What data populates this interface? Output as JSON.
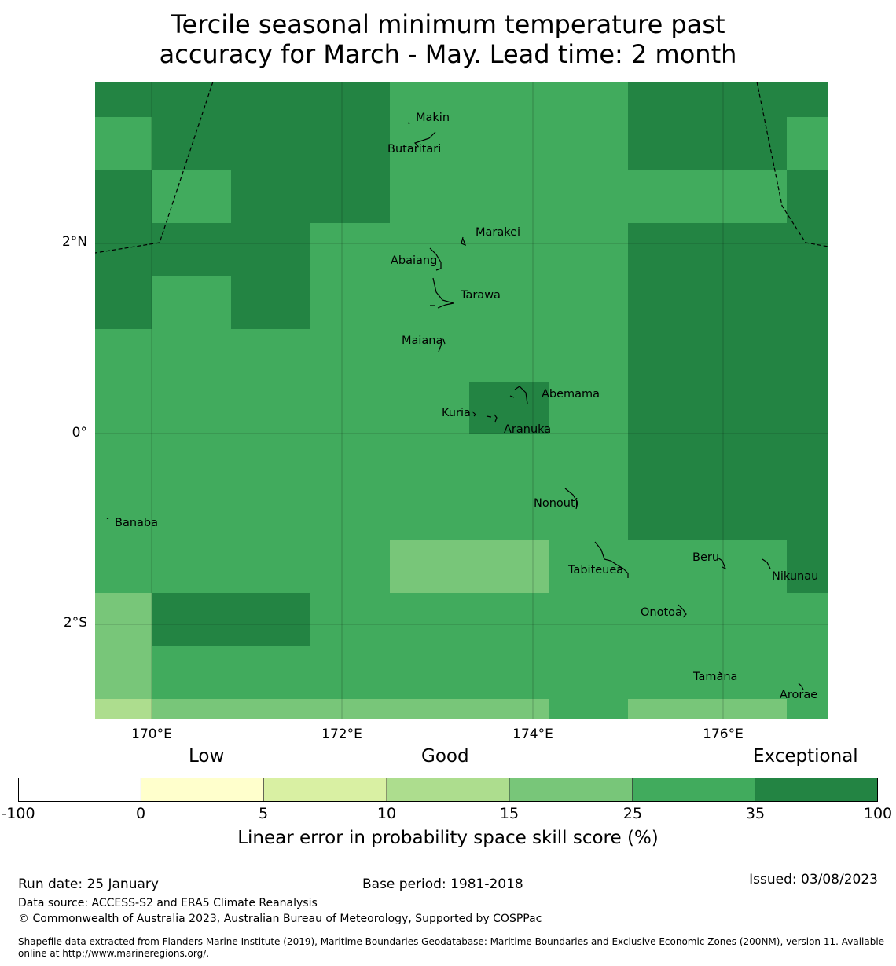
{
  "title_line1": "Tercile seasonal minimum temperature past",
  "title_line2": "accuracy for March - May. Lead time: 2 month",
  "map": {
    "lon_range": [
      169.4,
      177.1
    ],
    "lat_range": [
      -3.0,
      3.7
    ],
    "lon_labels": [
      "170°E",
      "172°E",
      "174°E",
      "176°E"
    ],
    "lat_labels": [
      "2°N",
      "0°",
      "2°S"
    ],
    "grid_colors": {
      "c1": "#78c679",
      "c2": "#41ab5d",
      "c3": "#238443",
      "c0": "#addd8e"
    },
    "places": [
      {
        "name": "Makin"
      },
      {
        "name": "Butaritari"
      },
      {
        "name": "Marakei"
      },
      {
        "name": "Abaiang"
      },
      {
        "name": "Tarawa"
      },
      {
        "name": "Maiana"
      },
      {
        "name": "Abemama"
      },
      {
        "name": "Kuria"
      },
      {
        "name": "Aranuka"
      },
      {
        "name": "Nonouti"
      },
      {
        "name": "Banaba"
      },
      {
        "name": "Beru"
      },
      {
        "name": "Tabiteuea"
      },
      {
        "name": "Nikunau"
      },
      {
        "name": "Onotoa"
      },
      {
        "name": "Tamana"
      },
      {
        "name": "Arorae"
      }
    ]
  },
  "legend": {
    "categories": [
      "Low",
      "Good",
      "Exceptional"
    ],
    "ticks": [
      "-100",
      "0",
      "5",
      "10",
      "15",
      "25",
      "35",
      "100"
    ],
    "colors": [
      "#ffffff",
      "#ffffcc",
      "#d9f0a3",
      "#addd8e",
      "#78c679",
      "#41ab5d",
      "#238443"
    ],
    "label": "Linear error in probability space skill score (%)"
  },
  "footer": {
    "run_date": "Run date: 25 January",
    "base_period": "Base period: 1981-2018",
    "issued": "Issued: 03/08/2023",
    "data_source": "Data source: ACCESS-S2 and ERA5 Climate Reanalysis",
    "copyright": "© Commonwealth of Australia 2023, Australian Bureau of Meteorology, Supported by COSPPac",
    "shapefile_line1": "Shapefile data extracted from Flanders Marine Institute (2019), Maritime Boundaries Geodatabase: Maritime Boundaries and Exclusive Economic Zones (200NM), version 11. Available",
    "shapefile_line2": "online at http://www.marineregions.org/."
  }
}
